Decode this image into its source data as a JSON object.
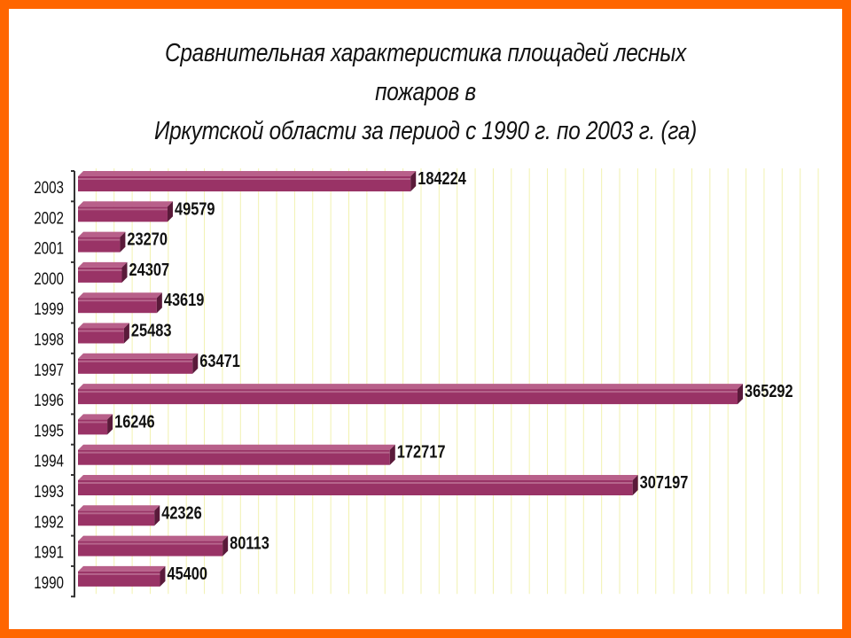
{
  "title_line1": "Сравнительная характеристика площадей лесных пожаров в",
  "title_line2": "Иркутской области за период с 1990 г. по 2003 г. (га)",
  "chart_data": {
    "type": "bar",
    "orientation": "horizontal",
    "title": "Сравнительная характеристика площадей лесных пожаров в Иркутской области за период с 1990 г. по 2003 г. (га)",
    "categories": [
      "2003",
      "2002",
      "2001",
      "2000",
      "1999",
      "1998",
      "1997",
      "1996",
      "1995",
      "1994",
      "1993",
      "1992",
      "1991",
      "1990"
    ],
    "values": [
      184224,
      49579,
      23270,
      24307,
      43619,
      25483,
      63471,
      365292,
      16246,
      172717,
      307197,
      42326,
      80113,
      45400
    ],
    "value_labels": [
      "184224",
      "49579",
      "23270",
      "24307",
      "43619",
      "25483",
      "63471",
      "365292",
      "16246",
      "172717",
      "307197",
      "42326",
      "80113",
      "45400"
    ],
    "xlim": [
      0,
      420000
    ],
    "grid": true,
    "legend": "none",
    "colors": {
      "bar_face": "#993366",
      "bar_top": "#b8608a",
      "bar_side": "#5a1a3a",
      "grid": "#f2f2b0",
      "frame": "#ff6600"
    }
  }
}
